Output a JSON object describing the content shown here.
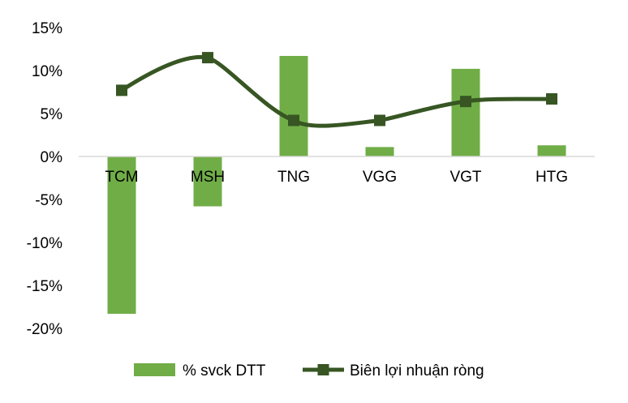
{
  "chart_data": {
    "type": "bar",
    "categories": [
      "TCM",
      "MSH",
      "TNG",
      "VGG",
      "VGT",
      "HTG"
    ],
    "series": [
      {
        "name": "% svck DTT",
        "type": "bar",
        "values": [
          -18.3,
          -5.8,
          11.7,
          1.1,
          10.2,
          1.3
        ]
      },
      {
        "name": "Biên lợi nhuận ròng",
        "type": "line",
        "values": [
          7.7,
          11.5,
          4.2,
          4.2,
          6.4,
          6.7
        ]
      }
    ],
    "ylim": [
      -20,
      15
    ],
    "yticks": [
      15,
      10,
      5,
      0,
      -5,
      -10,
      -15,
      -20
    ],
    "ytick_labels": [
      "15%",
      "10%",
      "5%",
      "0%",
      "-5%",
      "-10%",
      "-15%",
      "-20%"
    ],
    "grid": false,
    "legend_position": "bottom",
    "colors": {
      "bar": "#70ad47",
      "line": "#375623"
    }
  }
}
